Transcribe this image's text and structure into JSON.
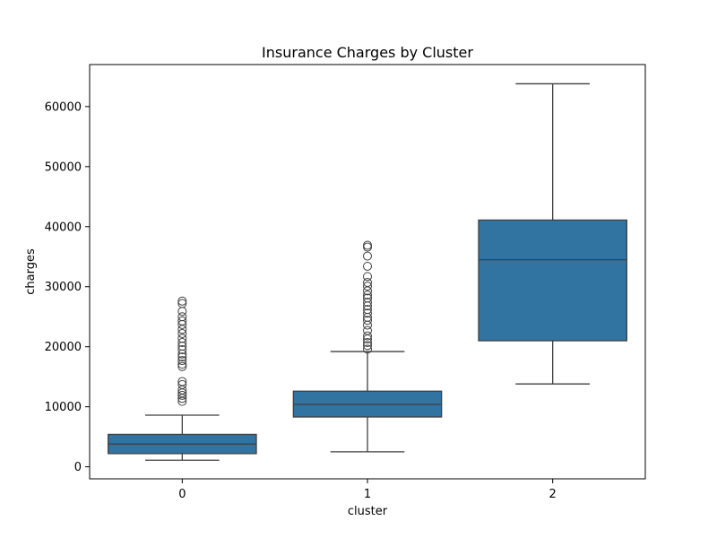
{
  "chart_data": {
    "type": "box",
    "title": "Insurance Charges by Cluster",
    "xlabel": "cluster",
    "ylabel": "charges",
    "ylim": [
      -2000,
      67000
    ],
    "yticks": [
      0,
      10000,
      20000,
      30000,
      40000,
      50000,
      60000
    ],
    "ytick_labels": [
      "0",
      "10000",
      "20000",
      "30000",
      "40000",
      "50000",
      "60000"
    ],
    "categories": [
      "0",
      "1",
      "2"
    ],
    "box_color": "#3274a1",
    "line_color": "#3f3f3f",
    "boxes": [
      {
        "category": "0",
        "whisker_low": 1100,
        "q1": 2200,
        "median": 3800,
        "q3": 5400,
        "whisker_high": 8600,
        "outliers": [
          10900,
          11400,
          11900,
          12300,
          12800,
          13700,
          14200,
          16700,
          17100,
          17700,
          18300,
          18800,
          19500,
          20100,
          20700,
          21400,
          22200,
          22900,
          23700,
          24300,
          25000,
          25900,
          27200,
          27600
        ]
      },
      {
        "category": "1",
        "whisker_low": 2500,
        "q1": 8300,
        "median": 10400,
        "q3": 12600,
        "whisker_high": 19200,
        "outliers": [
          19600,
          20200,
          20700,
          21300,
          21800,
          22700,
          23600,
          24400,
          24900,
          25600,
          26200,
          26800,
          27400,
          28100,
          28600,
          29300,
          30100,
          30700,
          31700,
          33400,
          35100,
          36600,
          36900
        ]
      },
      {
        "category": "2",
        "whisker_low": 13800,
        "q1": 21000,
        "median": 34500,
        "q3": 41100,
        "whisker_high": 63800,
        "outliers": []
      }
    ]
  }
}
